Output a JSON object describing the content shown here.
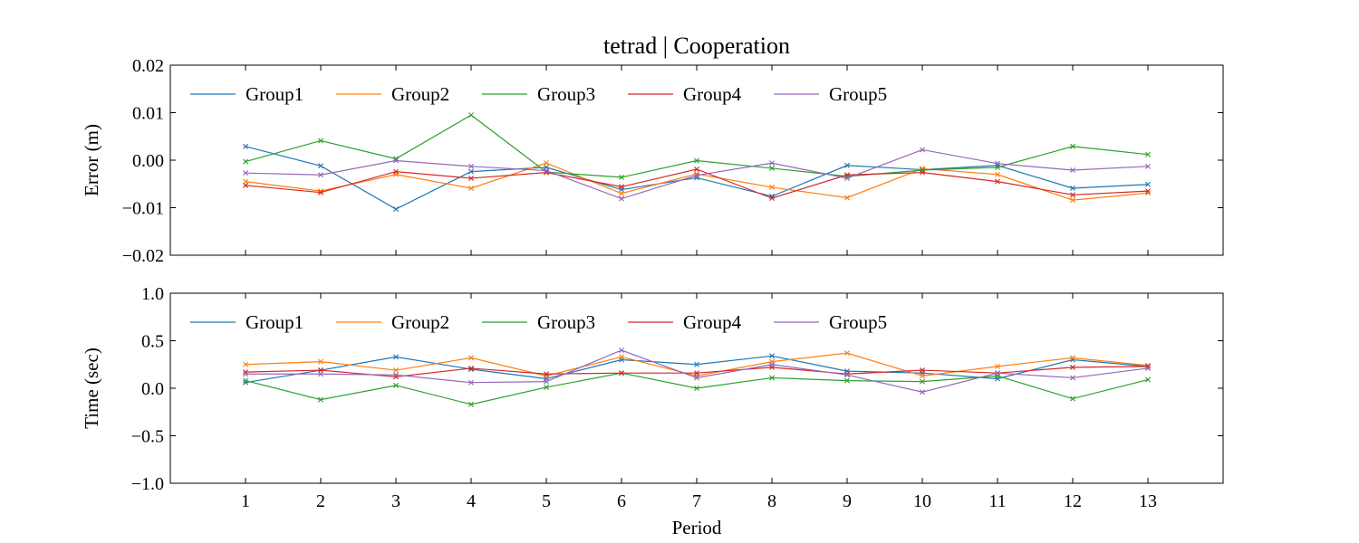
{
  "chart_data": [
    {
      "type": "line",
      "title": "tetrad | Cooperation",
      "xlabel": "",
      "ylabel": "Error (m)",
      "ylim": [
        -0.02,
        0.02
      ],
      "yticks": [
        -0.02,
        -0.01,
        0.0,
        0.01,
        0.02
      ],
      "ytick_labels": [
        "−0.02",
        "−0.01",
        "0.00",
        "0.01",
        "0.02"
      ],
      "xlim": [
        0,
        14
      ],
      "x": [
        1,
        2,
        3,
        4,
        5,
        6,
        7,
        8,
        9,
        10,
        11,
        12,
        13
      ],
      "xtick_labels": [],
      "legend_position": "upper-left",
      "marker": "x",
      "series": [
        {
          "name": "Group1",
          "color": "#1f77b4",
          "values": [
            0.0029,
            -0.0012,
            -0.0103,
            -0.0024,
            -0.0015,
            -0.0062,
            -0.0037,
            -0.0076,
            -0.0011,
            -0.002,
            -0.0011,
            -0.0059,
            -0.0051
          ]
        },
        {
          "name": "Group2",
          "color": "#ff7f0e",
          "values": [
            -0.0045,
            -0.0065,
            -0.003,
            -0.0059,
            -0.0006,
            -0.007,
            -0.0029,
            -0.0057,
            -0.0079,
            -0.0018,
            -0.003,
            -0.0084,
            -0.0069
          ]
        },
        {
          "name": "Group3",
          "color": "#2ca02c",
          "values": [
            -0.0003,
            0.0041,
            0.0003,
            0.0095,
            -0.0025,
            -0.0036,
            -0.0001,
            -0.0017,
            -0.0034,
            -0.0021,
            -0.0015,
            0.0029,
            0.0012
          ]
        },
        {
          "name": "Group4",
          "color": "#d62728",
          "values": [
            -0.0053,
            -0.0068,
            -0.0024,
            -0.0038,
            -0.0026,
            -0.0056,
            -0.0019,
            -0.008,
            -0.0031,
            -0.0026,
            -0.0045,
            -0.0073,
            -0.0065
          ]
        },
        {
          "name": "Group5",
          "color": "#9467bd",
          "values": [
            -0.0027,
            -0.0031,
            -0.0001,
            -0.0013,
            -0.0022,
            -0.0081,
            -0.0032,
            -0.0006,
            -0.0038,
            0.0022,
            -0.0007,
            -0.0021,
            -0.0013
          ]
        }
      ]
    },
    {
      "type": "line",
      "title": "",
      "xlabel": "Period",
      "ylabel": "Time (sec)",
      "ylim": [
        -1.0,
        1.0
      ],
      "yticks": [
        -1.0,
        -0.5,
        0.0,
        0.5,
        1.0
      ],
      "ytick_labels": [
        "−1.0",
        "−0.5",
        "0.0",
        "0.5",
        "1.0"
      ],
      "xlim": [
        0,
        14
      ],
      "x": [
        1,
        2,
        3,
        4,
        5,
        6,
        7,
        8,
        9,
        10,
        11,
        12,
        13
      ],
      "xtick_labels": [
        "1",
        "2",
        "3",
        "4",
        "5",
        "6",
        "7",
        "8",
        "9",
        "10",
        "11",
        "12",
        "13"
      ],
      "legend_position": "upper-left",
      "marker": "x",
      "series": [
        {
          "name": "Group1",
          "color": "#1f77b4",
          "values": [
            0.06,
            0.19,
            0.33,
            0.2,
            0.1,
            0.3,
            0.25,
            0.34,
            0.18,
            0.16,
            0.1,
            0.3,
            0.23
          ]
        },
        {
          "name": "Group2",
          "color": "#ff7f0e",
          "values": [
            0.25,
            0.28,
            0.19,
            0.32,
            0.13,
            0.33,
            0.13,
            0.28,
            0.37,
            0.13,
            0.23,
            0.32,
            0.24
          ]
        },
        {
          "name": "Group3",
          "color": "#2ca02c",
          "values": [
            0.08,
            -0.12,
            0.03,
            -0.17,
            0.01,
            0.16,
            0.0,
            0.11,
            0.08,
            0.07,
            0.13,
            -0.11,
            0.09
          ]
        },
        {
          "name": "Group4",
          "color": "#d62728",
          "values": [
            0.17,
            0.19,
            0.12,
            0.21,
            0.15,
            0.16,
            0.16,
            0.22,
            0.15,
            0.19,
            0.16,
            0.22,
            0.23
          ]
        },
        {
          "name": "Group5",
          "color": "#9467bd",
          "values": [
            0.15,
            0.15,
            0.14,
            0.06,
            0.07,
            0.4,
            0.11,
            0.25,
            0.14,
            -0.04,
            0.16,
            0.11,
            0.21
          ]
        }
      ]
    }
  ]
}
